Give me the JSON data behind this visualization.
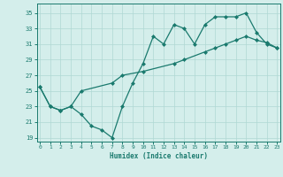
{
  "xlabel": "Humidex (Indice chaleur)",
  "line1_x": [
    0,
    1,
    2,
    3,
    4,
    5,
    6,
    7,
    8,
    9,
    10,
    11,
    12,
    13,
    14,
    15,
    16,
    17,
    18,
    19,
    20,
    21,
    22,
    23
  ],
  "line1_y": [
    25.5,
    23.0,
    22.5,
    23.0,
    22.0,
    20.5,
    20.0,
    19.0,
    23.0,
    26.0,
    28.5,
    32.0,
    31.0,
    33.5,
    33.0,
    31.0,
    33.5,
    34.5,
    34.5,
    34.5,
    35.0,
    32.5,
    31.0,
    30.5
  ],
  "line2_x": [
    0,
    1,
    2,
    3,
    4,
    7,
    8,
    10,
    13,
    14,
    16,
    17,
    18,
    19,
    20,
    21,
    22,
    23
  ],
  "line2_y": [
    25.5,
    23.0,
    22.5,
    23.0,
    25.0,
    26.0,
    27.0,
    27.5,
    28.5,
    29.0,
    30.0,
    30.5,
    31.0,
    31.5,
    32.0,
    31.5,
    31.2,
    30.5
  ],
  "line_color": "#1a7a6e",
  "marker": "D",
  "markersize": 2.0,
  "linewidth": 0.9,
  "bg_color": "#d4eeeb",
  "grid_color": "#afd8d3",
  "yticks": [
    19,
    21,
    23,
    25,
    27,
    29,
    31,
    33,
    35
  ],
  "xticks": [
    0,
    1,
    2,
    3,
    4,
    5,
    6,
    7,
    8,
    9,
    10,
    11,
    12,
    13,
    14,
    15,
    16,
    17,
    18,
    19,
    20,
    21,
    22,
    23
  ],
  "ylim": [
    18.5,
    36.2
  ],
  "xlim": [
    -0.3,
    23.3
  ]
}
